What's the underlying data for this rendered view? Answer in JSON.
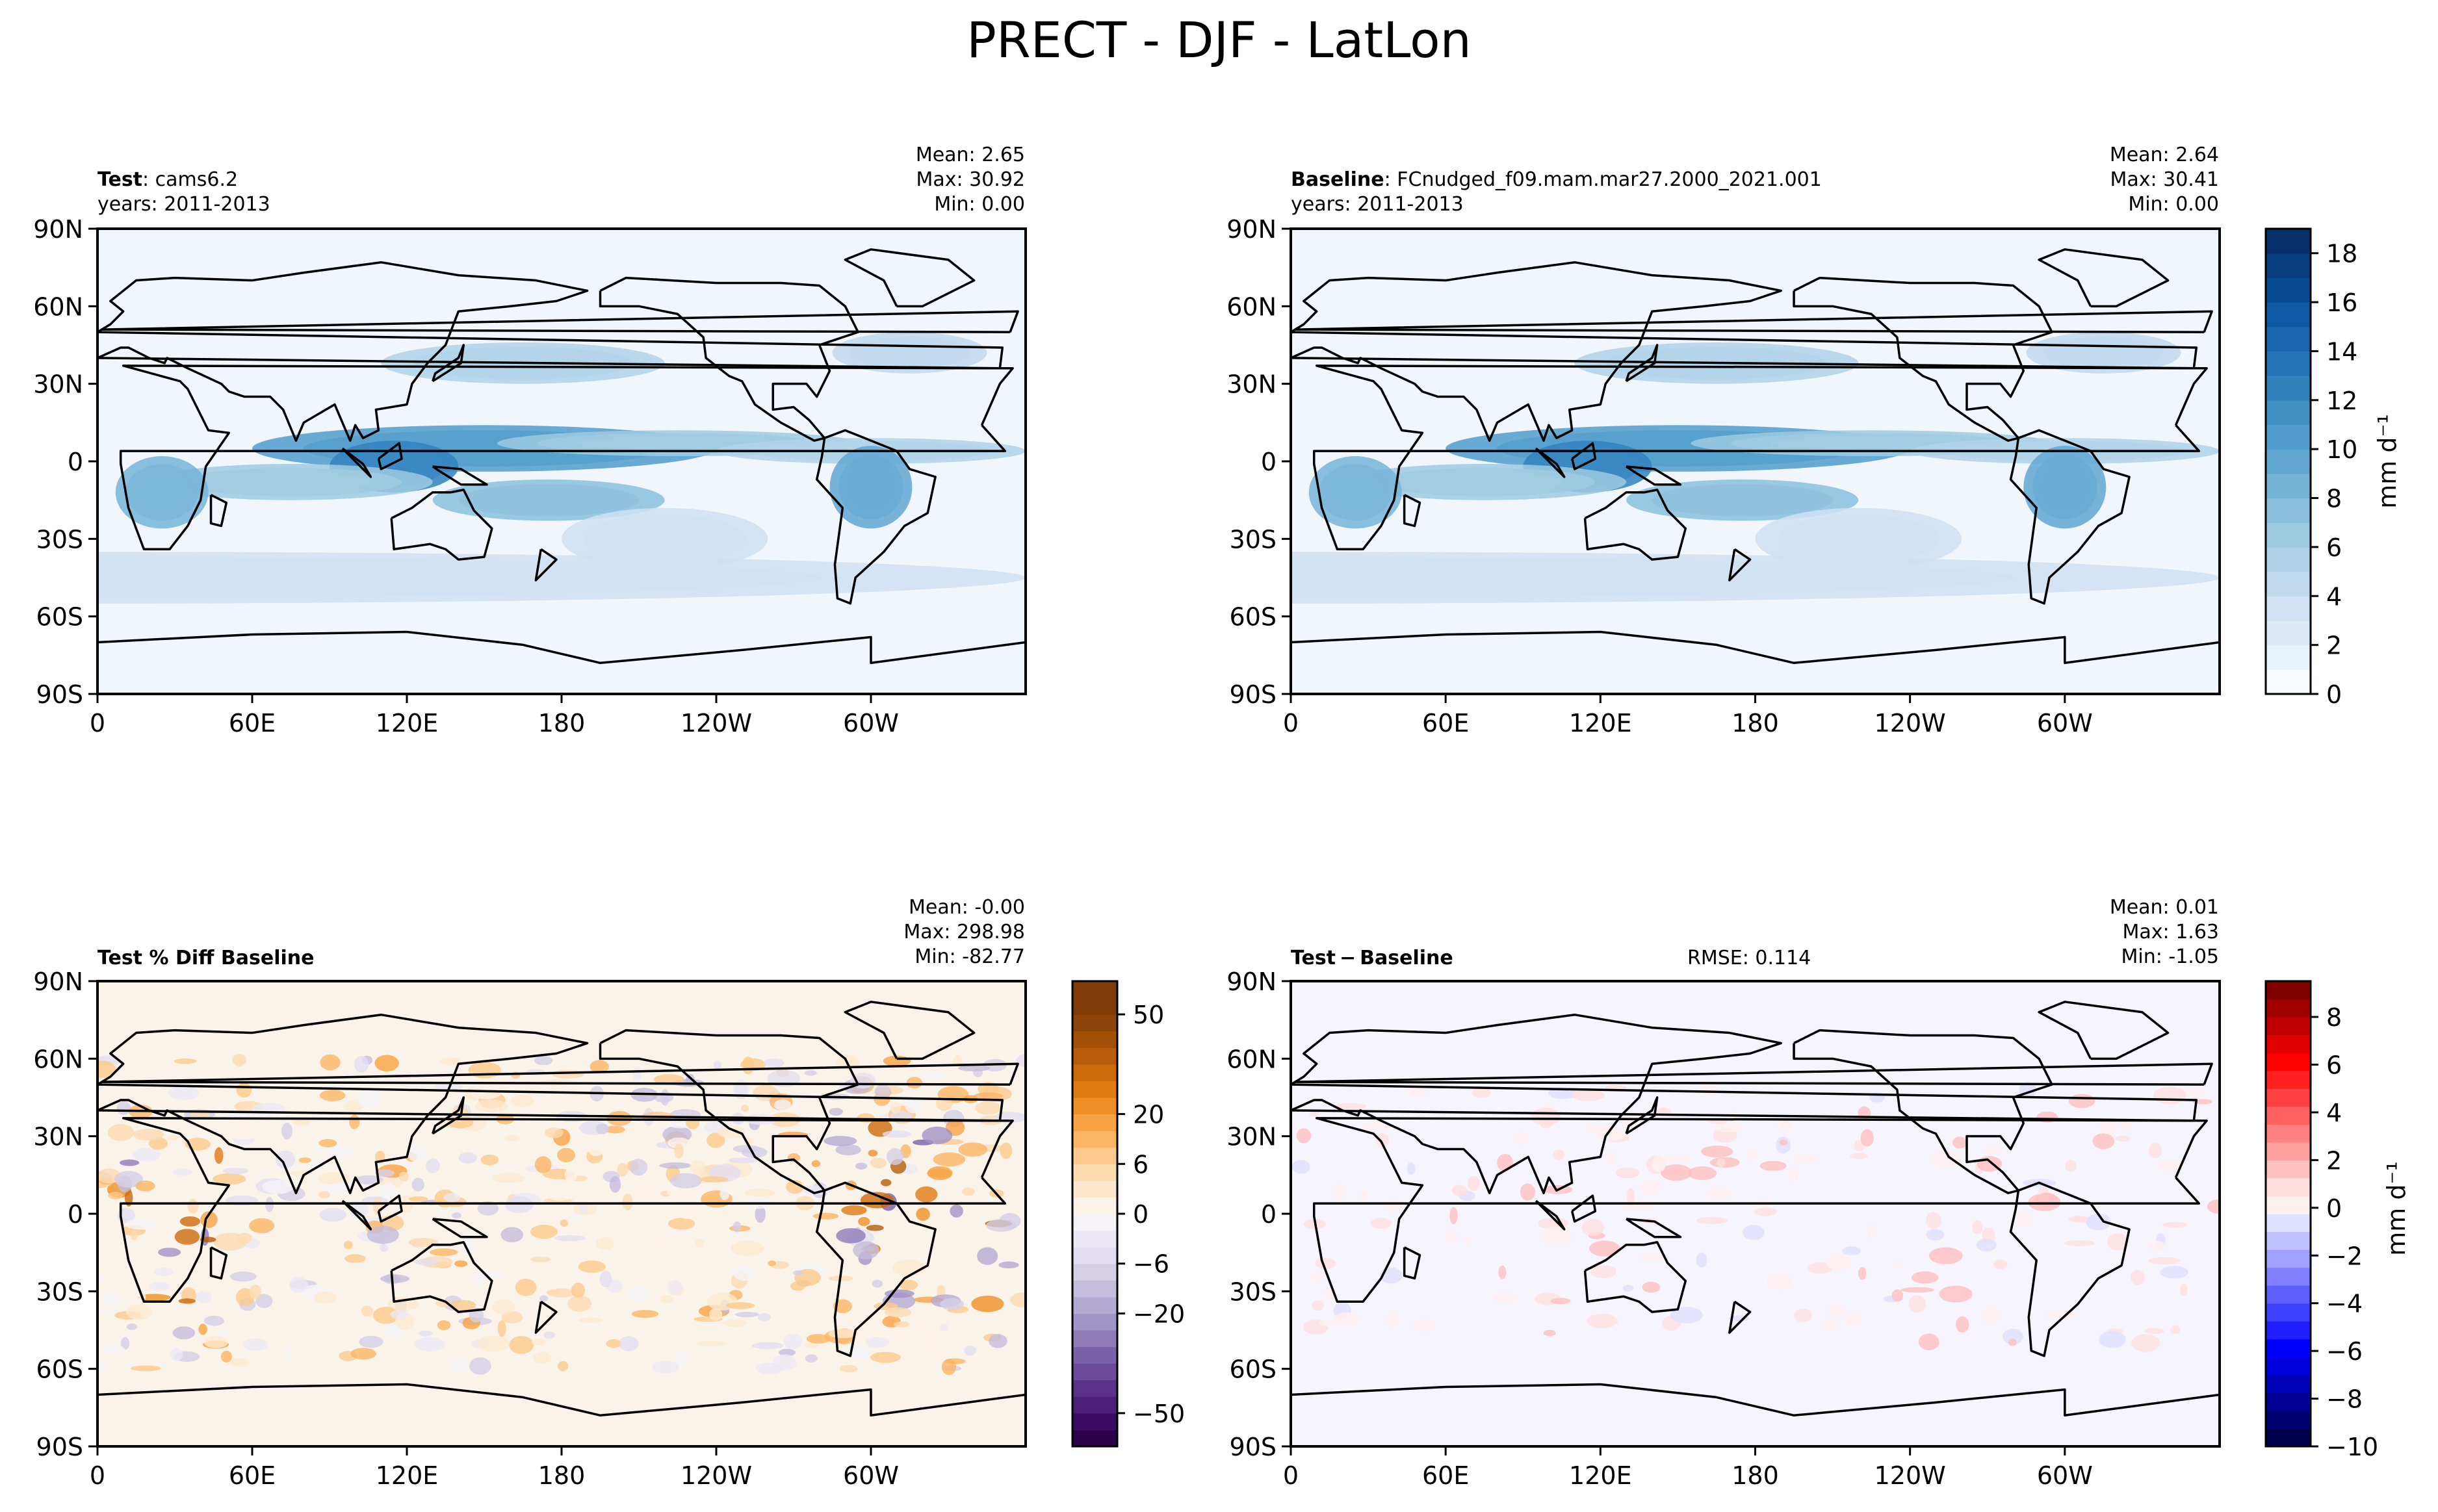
{
  "figure": {
    "title": "PRECT - DJF - LatLon"
  },
  "map_axes": {
    "x_ticks": [
      "0",
      "60E",
      "120E",
      "180",
      "120W",
      "60W"
    ],
    "y_ticks": [
      "90N",
      "60N",
      "30N",
      "0",
      "30S",
      "60S",
      "90S"
    ]
  },
  "panels": [
    {
      "id": "test",
      "label_bold": "Test",
      "label_text": ": cams6.2",
      "years": "years: 2011-2013",
      "stats": [
        "Mean:  2.65",
        "Max: 30.92",
        "Min:  0.00"
      ],
      "fill": "#f1f6fc"
    },
    {
      "id": "baseline",
      "label_bold": "Baseline",
      "label_text": ": FCnudged_f09.mam.mar27.2000_2021.001",
      "years": "years: 2011-2013",
      "stats": [
        "Mean:  2.64",
        "Max: 30.41",
        "Min:  0.00"
      ],
      "fill": "#f1f6fc"
    },
    {
      "id": "pct-diff",
      "label_bold": "Test % Diff Baseline",
      "label_text": "",
      "stats": [
        "Mean: -0.00",
        "Max: 298.98",
        "Min: -82.77"
      ],
      "fill": "#faf3ea"
    },
    {
      "id": "diff",
      "label_bold": "Test − Baseline",
      "label_text": "",
      "rmse": "RMSE: 0.114",
      "stats": [
        "Mean:  0.01",
        "Max:  1.63",
        "Min: -1.05"
      ],
      "fill": "#f6f4fc"
    }
  ],
  "colorbars": [
    {
      "id": "prect",
      "units": "mm d⁻¹",
      "range": [
        0,
        19
      ],
      "ticks": [
        0,
        2,
        4,
        6,
        8,
        10,
        12,
        14,
        16,
        18
      ],
      "colors": [
        "#f7fbff",
        "#e9f2fb",
        "#dce9f6",
        "#cfe1f2",
        "#c1d9ed",
        "#b0d2e8",
        "#9ecae1",
        "#8abfdd",
        "#75b4d8",
        "#61a7d2",
        "#509ccc",
        "#4090c5",
        "#3282be",
        "#2474b7",
        "#1966ad",
        "#0e59a3",
        "#084b93",
        "#083d7f",
        "#08306b"
      ]
    },
    {
      "id": "pct",
      "units": "",
      "levels": [
        -60,
        -55,
        -50,
        -45,
        -40,
        -35,
        -30,
        -25,
        -20,
        -15,
        -10,
        -6,
        -4,
        -2,
        0,
        2,
        4,
        6,
        10,
        15,
        20,
        25,
        30,
        35,
        40,
        45,
        50,
        55,
        60
      ],
      "tick_labels": [
        "−50",
        "−20",
        "−6",
        "0",
        "6",
        "20",
        "50"
      ],
      "tick_values": [
        -50,
        -20,
        -6,
        0,
        6,
        20,
        50
      ],
      "colors": [
        "#2d004b",
        "#3b0c61",
        "#4b1f77",
        "#5a3289",
        "#6a4a99",
        "#7a62a8",
        "#8d7cb8",
        "#a194c6",
        "#b3aad2",
        "#c4bddc",
        "#d5d0e6",
        "#e2def0",
        "#ece9f4",
        "#f5f3f8",
        "#fbf3e8",
        "#fde8cf",
        "#fddbb1",
        "#fdca8c",
        "#fbb565",
        "#f7a243",
        "#ef8e26",
        "#e07b14",
        "#cc6a0b",
        "#b85c09",
        "#a24f08",
        "#8c4408",
        "#7f3b08",
        "#7f3b08"
      ]
    },
    {
      "id": "diff",
      "units": "mm d⁻¹",
      "range": [
        -10,
        9.5
      ],
      "ticks": [
        -10,
        -8,
        -6,
        -4,
        -2,
        0,
        2,
        4,
        6,
        8
      ],
      "tick_labels": [
        "−10",
        "−8",
        "−6",
        "−4",
        "−2",
        "0",
        "2",
        "4",
        "6",
        "8"
      ],
      "colors": [
        "#00004c",
        "#000070",
        "#000094",
        "#0000b8",
        "#0000dc",
        "#0000ff",
        "#2020ff",
        "#4040ff",
        "#6060ff",
        "#8080ff",
        "#a0a0ff",
        "#c0c0ff",
        "#e0e0ff",
        "#fff0f0",
        "#ffe0e0",
        "#ffc0c0",
        "#ffa0a0",
        "#ff8080",
        "#ff6060",
        "#ff4040",
        "#ff2020",
        "#ff0000",
        "#e00000",
        "#c00000",
        "#a00000",
        "#800000"
      ]
    }
  ]
}
